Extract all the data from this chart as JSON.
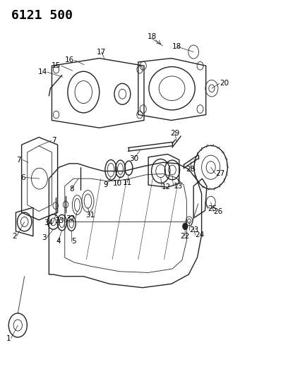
{
  "title": "6121 500",
  "background_color": "#ffffff",
  "line_color": "#222222",
  "label_color": "#000000",
  "label_fontsize": 7.5,
  "title_fontsize": 13,
  "figsize": [
    4.08,
    5.33
  ],
  "dpi": 100
}
